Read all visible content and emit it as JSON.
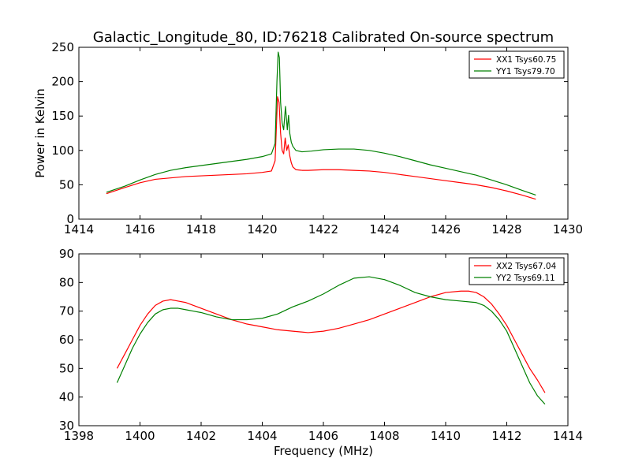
{
  "figure": {
    "title": "Galactic_Longitude_80, ID:76218 Calibrated On-source spectrum"
  },
  "chart_data": [
    {
      "type": "line",
      "ylabel": "Power in Kelvin",
      "xlabel": "",
      "xlim": [
        1414,
        1430
      ],
      "ylim": [
        0,
        250
      ],
      "xticks": [
        "1414",
        "1416",
        "1418",
        "1420",
        "1422",
        "1424",
        "1426",
        "1428",
        "1430"
      ],
      "yticks": [
        "0",
        "50",
        "100",
        "150",
        "200",
        "250"
      ],
      "grid": false,
      "legend": "top-right",
      "series": [
        {
          "name": "XX1 Tsys60.75",
          "color": "#ff0000",
          "x": [
            1414.9,
            1415.5,
            1416.0,
            1416.5,
            1417.0,
            1417.5,
            1418.0,
            1418.5,
            1419.0,
            1419.5,
            1420.0,
            1420.3,
            1420.42,
            1420.5,
            1420.55,
            1420.6,
            1420.65,
            1420.7,
            1420.75,
            1420.8,
            1420.85,
            1420.9,
            1420.95,
            1421.0,
            1421.1,
            1421.3,
            1421.5,
            1422.0,
            1422.5,
            1423.0,
            1423.5,
            1424.0,
            1424.5,
            1425.0,
            1425.5,
            1426.0,
            1426.5,
            1427.0,
            1427.5,
            1428.0,
            1428.5,
            1428.95
          ],
          "values": [
            37,
            46,
            53,
            58,
            60,
            62,
            63,
            64,
            65,
            66,
            68,
            70,
            85,
            178,
            170,
            125,
            100,
            95,
            118,
            100,
            108,
            92,
            82,
            76,
            72,
            71,
            71,
            72,
            72,
            71,
            70,
            68,
            65,
            62,
            59,
            56,
            53,
            50,
            46,
            41,
            35,
            29
          ]
        },
        {
          "name": "YY1 Tsys79.70",
          "color": "#008000",
          "x": [
            1414.9,
            1415.5,
            1416.0,
            1416.5,
            1417.0,
            1417.5,
            1418.0,
            1418.5,
            1419.0,
            1419.5,
            1420.0,
            1420.3,
            1420.42,
            1420.48,
            1420.52,
            1420.56,
            1420.6,
            1420.65,
            1420.7,
            1420.76,
            1420.82,
            1420.86,
            1420.9,
            1420.95,
            1421.0,
            1421.1,
            1421.3,
            1421.6,
            1422.0,
            1422.5,
            1423.0,
            1423.5,
            1424.0,
            1424.5,
            1425.0,
            1425.5,
            1426.0,
            1426.5,
            1427.0,
            1427.5,
            1428.0,
            1428.5,
            1428.95
          ],
          "values": [
            39,
            48,
            57,
            65,
            71,
            75,
            78,
            81,
            84,
            87,
            91,
            95,
            110,
            200,
            243,
            235,
            170,
            140,
            130,
            164,
            130,
            151,
            125,
            112,
            106,
            100,
            98,
            99,
            101,
            102,
            102,
            100,
            96,
            91,
            85,
            79,
            74,
            69,
            64,
            57,
            50,
            42,
            35
          ]
        }
      ]
    },
    {
      "type": "line",
      "ylabel": "",
      "xlabel": "Frequency (MHz)",
      "xlim": [
        1398,
        1414
      ],
      "ylim": [
        30,
        90
      ],
      "xticks": [
        "1398",
        "1400",
        "1402",
        "1404",
        "1406",
        "1408",
        "1410",
        "1412",
        "1414"
      ],
      "yticks": [
        "30",
        "40",
        "50",
        "60",
        "70",
        "80",
        "90"
      ],
      "grid": false,
      "legend": "top-right",
      "series": [
        {
          "name": "XX2 Tsys67.04",
          "color": "#ff0000",
          "x": [
            1399.25,
            1399.5,
            1399.75,
            1400.0,
            1400.25,
            1400.5,
            1400.75,
            1401.0,
            1401.25,
            1401.5,
            1401.75,
            1402.0,
            1402.5,
            1403.0,
            1403.5,
            1404.0,
            1404.5,
            1405.0,
            1405.5,
            1406.0,
            1406.5,
            1407.0,
            1407.5,
            1408.0,
            1408.5,
            1409.0,
            1409.5,
            1410.0,
            1410.5,
            1410.75,
            1411.0,
            1411.25,
            1411.5,
            1411.75,
            1412.0,
            1412.25,
            1412.5,
            1412.75,
            1413.0,
            1413.25
          ],
          "values": [
            50,
            55,
            60,
            65,
            69,
            72,
            73.5,
            74,
            73.5,
            73,
            72,
            71,
            69,
            67,
            65.5,
            64.5,
            63.5,
            63,
            62.5,
            63,
            64,
            65.5,
            67,
            69,
            71,
            73,
            75,
            76.5,
            77,
            77,
            76.5,
            75,
            72.5,
            69,
            65,
            60,
            55,
            50,
            46,
            41.5
          ]
        },
        {
          "name": "YY2 Tsys69.11",
          "color": "#008000",
          "x": [
            1399.25,
            1399.5,
            1399.75,
            1400.0,
            1400.25,
            1400.5,
            1400.75,
            1401.0,
            1401.25,
            1401.5,
            1401.75,
            1402.0,
            1402.5,
            1403.0,
            1403.5,
            1404.0,
            1404.5,
            1405.0,
            1405.5,
            1406.0,
            1406.5,
            1407.0,
            1407.5,
            1408.0,
            1408.5,
            1409.0,
            1409.5,
            1410.0,
            1410.5,
            1411.0,
            1411.25,
            1411.5,
            1411.75,
            1412.0,
            1412.25,
            1412.5,
            1412.75,
            1413.0,
            1413.25
          ],
          "values": [
            45,
            51,
            57,
            62,
            66,
            69,
            70.5,
            71,
            71,
            70.5,
            70,
            69.5,
            68,
            67,
            67,
            67.5,
            69,
            71.5,
            73.5,
            76,
            79,
            81.5,
            82,
            81,
            79,
            76.5,
            75,
            74,
            73.5,
            73,
            72,
            70,
            67,
            63,
            57,
            51,
            45,
            40.5,
            37.5
          ]
        }
      ]
    }
  ]
}
